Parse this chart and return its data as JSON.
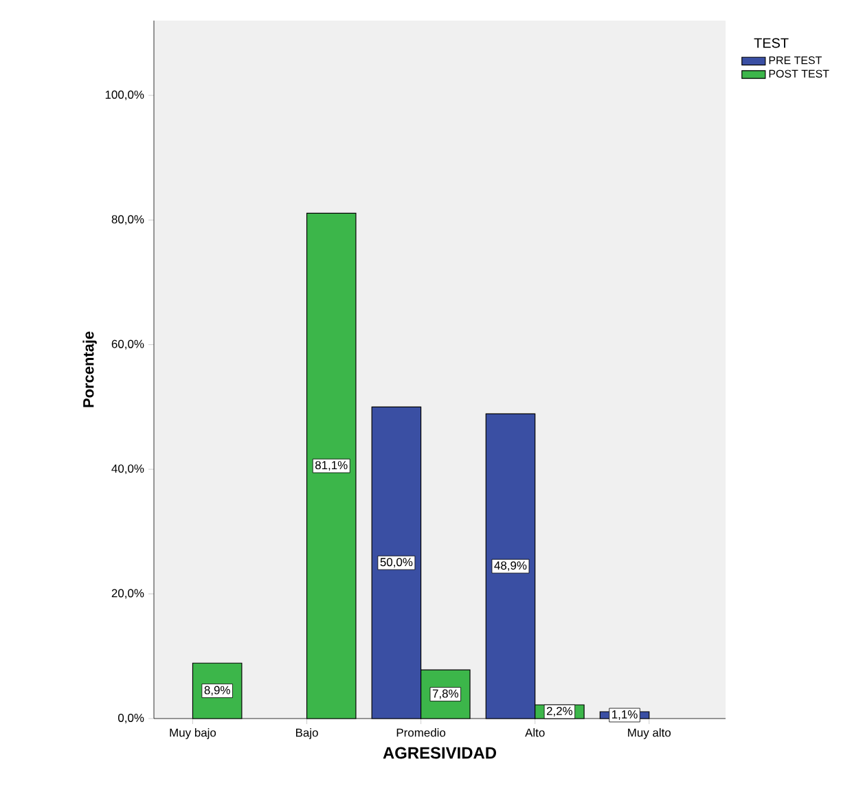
{
  "chart_data": {
    "type": "bar",
    "xlabel": "AGRESIVIDAD",
    "ylabel": "Porcentaje",
    "legend_title": "TEST",
    "legend": "top right",
    "categories": [
      "Muy bajo",
      "Bajo",
      "Promedio",
      "Alto",
      "Muy alto"
    ],
    "series": [
      {
        "name": "PRE TEST",
        "color": "#3a4fa3",
        "values": [
          null,
          null,
          50.0,
          48.9,
          1.1
        ],
        "value_labels": [
          null,
          null,
          "50,0%",
          "48,9%",
          "1,1%"
        ]
      },
      {
        "name": "POST TEST",
        "color": "#3cb64a",
        "values": [
          8.9,
          81.1,
          7.8,
          2.2,
          null
        ],
        "value_labels": [
          "8,9%",
          "81,1%",
          "7,8%",
          "2,2%",
          null
        ]
      }
    ],
    "ylim": [
      0,
      112
    ],
    "yticks": [
      {
        "value": 0,
        "label": "0,0%"
      },
      {
        "value": 20,
        "label": "20,0%"
      },
      {
        "value": 40,
        "label": "40,0%"
      },
      {
        "value": 60,
        "label": "60,0%"
      },
      {
        "value": 80,
        "label": "80,0%"
      },
      {
        "value": 100,
        "label": "100,0%"
      }
    ],
    "grid": false
  }
}
